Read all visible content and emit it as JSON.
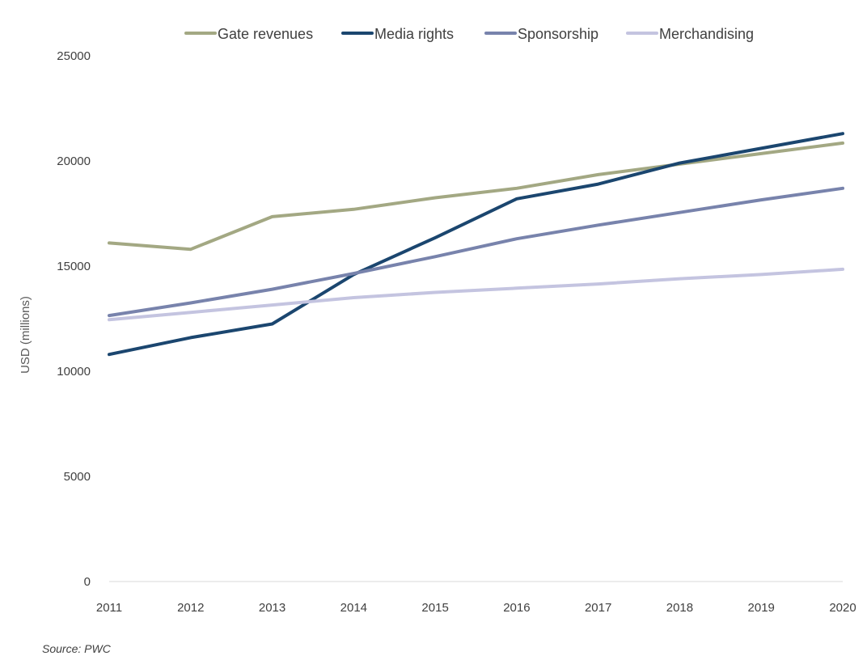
{
  "chart_data": {
    "type": "line",
    "title": "",
    "xlabel": "",
    "ylabel": "USD (millions)",
    "ylim": [
      0,
      25000
    ],
    "yticks": [
      0,
      5000,
      10000,
      15000,
      20000,
      25000
    ],
    "grid": false,
    "legend_position": "top",
    "x": [
      2011,
      2012,
      2013,
      2014,
      2015,
      2016,
      2017,
      2018,
      2019,
      2020
    ],
    "series": [
      {
        "name": "Gate revenues",
        "color": "#a3a883",
        "values": [
          16100,
          15800,
          17350,
          17700,
          18250,
          18700,
          19350,
          19850,
          20350,
          20850
        ]
      },
      {
        "name": "Media rights",
        "color": "#1b466f",
        "values": [
          10800,
          11600,
          12250,
          14600,
          16350,
          18200,
          18900,
          19900,
          20600,
          21300
        ]
      },
      {
        "name": "Sponsorship",
        "color": "#7883ac",
        "values": [
          12650,
          13250,
          13900,
          14650,
          15450,
          16300,
          16950,
          17550,
          18150,
          18700
        ]
      },
      {
        "name": "Merchandising",
        "color": "#c4c4e0",
        "values": [
          12450,
          12800,
          13150,
          13500,
          13750,
          13950,
          14150,
          14400,
          14600,
          14850
        ]
      }
    ]
  },
  "footer": {
    "source": "Source: PWC"
  }
}
